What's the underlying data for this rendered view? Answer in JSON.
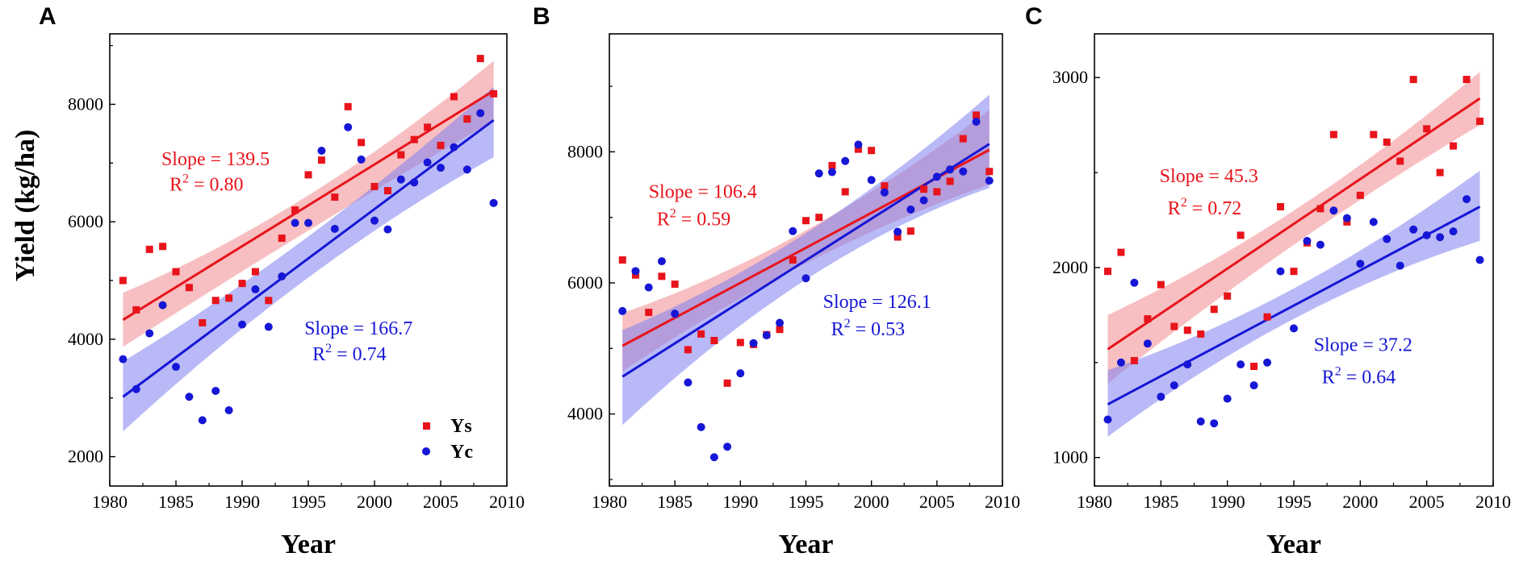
{
  "figure": {
    "ylabel": "Yield (kg/ha)",
    "xlabel": "Year"
  },
  "colors": {
    "ys": "#e8141b",
    "yc": "#1616d6",
    "ys_band": "#f08a8e",
    "yc_band": "#8080f0"
  },
  "legend": {
    "ys_label": "Ys",
    "yc_label": "Yc"
  },
  "chart_data": [
    {
      "panel": "A",
      "type": "scatter",
      "title": "",
      "xlabel": "Year",
      "ylabel": "Yield (kg/ha)",
      "xlim": [
        1980,
        2010
      ],
      "ylim": [
        1500,
        9200
      ],
      "xticks": [
        "1980",
        "1985",
        "1990",
        "1995",
        "2000",
        "2005",
        "2010"
      ],
      "xtick_values": [
        1980,
        1985,
        1990,
        1995,
        2000,
        2005,
        2010
      ],
      "yticks": [
        "2000",
        "4000",
        "6000",
        "8000"
      ],
      "ytick_values": [
        2000,
        4000,
        6000,
        8000
      ],
      "series": [
        {
          "name": "Ys",
          "marker": "square",
          "color": "ys",
          "x": [
            1981,
            1982,
            1983,
            1984,
            1985,
            1986,
            1987,
            1988,
            1989,
            1990,
            1991,
            1992,
            1993,
            1994,
            1995,
            1996,
            1997,
            1998,
            1999,
            2000,
            2001,
            2002,
            2003,
            2004,
            2005,
            2006,
            2007,
            2008,
            2009
          ],
          "y": [
            5000,
            4500,
            5530,
            5580,
            5150,
            4880,
            4280,
            4660,
            4700,
            4950,
            5150,
            4660,
            5720,
            6200,
            6800,
            7050,
            6420,
            7960,
            7350,
            6600,
            6530,
            7140,
            7400,
            7610,
            7300,
            8130,
            7750,
            8780,
            8180
          ],
          "fit": {
            "y_start": 4330,
            "y_end": 8230,
            "slope_label": "Slope = 139.5",
            "r2_label": "R² = 0.80"
          },
          "ci_start": [
            3870,
            4790
          ],
          "ci_mid": [
            5850,
            6450
          ],
          "ci_end": [
            7720,
            8740
          ]
        },
        {
          "name": "Yc",
          "marker": "circle",
          "color": "yc",
          "x": [
            1981,
            1982,
            1983,
            1984,
            1985,
            1986,
            1987,
            1988,
            1989,
            1990,
            1991,
            1992,
            1993,
            1994,
            1995,
            1996,
            1997,
            1998,
            1999,
            2000,
            2001,
            2002,
            2003,
            2004,
            2005,
            2006,
            2007,
            2008,
            2009
          ],
          "y": [
            3660,
            3150,
            4100,
            4580,
            3530,
            3020,
            2620,
            3120,
            2790,
            4250,
            4850,
            4210,
            5070,
            5980,
            5980,
            7210,
            5880,
            7610,
            7060,
            6020,
            5870,
            6720,
            6670,
            7010,
            6920,
            7270,
            6890,
            7850,
            6320
          ],
          "fit": {
            "y_start": 3020,
            "y_end": 7730,
            "slope_label": "Slope = 166.7",
            "r2_label": "R² = 0.74"
          },
          "ci_start": [
            2430,
            3620
          ],
          "ci_mid": [
            5050,
            5750
          ],
          "ci_end": [
            7100,
            8300
          ]
        }
      ],
      "annotations": [
        {
          "series": "Ys",
          "slope": "Slope = 139.5",
          "r2": "R² = 0.80",
          "ax": 1983.9,
          "ay_slope": 6960,
          "ay_r2": 6530
        },
        {
          "series": "Yc",
          "slope": "Slope = 166.7",
          "r2": "R² = 0.74",
          "ax": 1994.7,
          "ay_slope": 4080,
          "ay_r2": 3640
        }
      ],
      "legend": "bottom-right"
    },
    {
      "panel": "B",
      "type": "scatter",
      "title": "",
      "xlabel": "Year",
      "ylabel": "",
      "xlim": [
        1980,
        2010
      ],
      "ylim": [
        2900,
        9800
      ],
      "xticks": [
        "1980",
        "1985",
        "1990",
        "1995",
        "2000",
        "2005",
        "2010"
      ],
      "xtick_values": [
        1980,
        1985,
        1990,
        1995,
        2000,
        2005,
        2010
      ],
      "yticks": [
        "4000",
        "6000",
        "8000"
      ],
      "ytick_values": [
        4000,
        6000,
        8000
      ],
      "series": [
        {
          "name": "Ys",
          "marker": "square",
          "color": "ys",
          "x": [
            1981,
            1982,
            1983,
            1984,
            1985,
            1986,
            1987,
            1988,
            1989,
            1990,
            1991,
            1992,
            1993,
            1994,
            1995,
            1996,
            1997,
            1998,
            1999,
            2000,
            2001,
            2002,
            2003,
            2004,
            2005,
            2006,
            2007,
            2008,
            2009
          ],
          "y": [
            6350,
            6120,
            5550,
            6100,
            5980,
            4980,
            5220,
            5120,
            4470,
            5090,
            5060,
            5210,
            5290,
            6350,
            6950,
            7000,
            7790,
            7390,
            8040,
            8020,
            7480,
            6700,
            6790,
            7430,
            7390,
            7550,
            8200,
            8560,
            7700
          ],
          "fit": {
            "y_start": 5040,
            "y_end": 8030,
            "slope_label": "Slope = 106.4",
            "r2_label": "R² = 0.59"
          },
          "ci_start": [
            4650,
            5540
          ],
          "ci_mid": [
            6300,
            6800
          ],
          "ci_end": [
            7500,
            8640
          ]
        },
        {
          "name": "Yc",
          "marker": "circle",
          "color": "yc",
          "x": [
            1981,
            1982,
            1983,
            1984,
            1985,
            1986,
            1987,
            1988,
            1989,
            1990,
            1991,
            1992,
            1993,
            1994,
            1995,
            1996,
            1997,
            1998,
            1999,
            2000,
            2001,
            2002,
            2003,
            2004,
            2005,
            2006,
            2007,
            2008,
            2009
          ],
          "y": [
            5570,
            6180,
            5930,
            6330,
            5530,
            4480,
            3800,
            3340,
            3500,
            4620,
            5080,
            5200,
            5390,
            6790,
            6070,
            7670,
            7690,
            7860,
            8110,
            7570,
            7380,
            6780,
            7120,
            7260,
            7620,
            7730,
            7700,
            8460,
            7560
          ],
          "fit": {
            "y_start": 4570,
            "y_end": 8120,
            "slope_label": "Slope = 126.1",
            "r2_label": "R² = 0.53"
          },
          "ci_start": [
            3830,
            5280
          ],
          "ci_mid": [
            6050,
            6760
          ],
          "ci_end": [
            7450,
            8870
          ]
        }
      ],
      "annotations": [
        {
          "series": "Ys",
          "slope": "Slope = 106.4",
          "r2": "R² = 0.59",
          "ax": 1983.0,
          "ay_slope": 7300,
          "ay_r2": 6880
        },
        {
          "series": "Yc",
          "slope": "Slope = 126.1",
          "r2": "R² = 0.53",
          "ax": 1996.3,
          "ay_slope": 5620,
          "ay_r2": 5200
        }
      ],
      "legend": "none"
    },
    {
      "panel": "C",
      "type": "scatter",
      "title": "",
      "xlabel": "Year",
      "ylabel": "",
      "xlim": [
        1980,
        2010
      ],
      "ylim": [
        850,
        3230
      ],
      "xticks": [
        "1980",
        "1985",
        "1990",
        "1995",
        "2000",
        "2005",
        "2010"
      ],
      "xtick_values": [
        1980,
        1985,
        1990,
        1995,
        2000,
        2005,
        2010
      ],
      "yticks": [
        "1000",
        "2000",
        "3000"
      ],
      "ytick_values": [
        1000,
        2000,
        3000
      ],
      "series": [
        {
          "name": "Ys",
          "marker": "square",
          "color": "ys",
          "x": [
            1981,
            1982,
            1983,
            1984,
            1985,
            1986,
            1987,
            1988,
            1989,
            1990,
            1991,
            1992,
            1993,
            1994,
            1995,
            1996,
            1997,
            1998,
            1999,
            2000,
            2001,
            2002,
            2003,
            2004,
            2005,
            2006,
            2007,
            2008,
            2009
          ],
          "y": [
            1980,
            2080,
            1510,
            1730,
            1910,
            1690,
            1670,
            1650,
            1780,
            1850,
            2170,
            1480,
            1740,
            2320,
            1980,
            2130,
            2310,
            2700,
            2240,
            2380,
            2700,
            2660,
            2560,
            2990,
            2730,
            2500,
            2640,
            2990,
            2770
          ],
          "fit": {
            "y_start": 1570,
            "y_end": 2890,
            "slope_label": "Slope = 45.3",
            "r2_label": "R² = 0.72"
          },
          "ci_start": [
            1390,
            1750
          ],
          "ci_mid": [
            2120,
            2300
          ],
          "ci_end": [
            2750,
            3030
          ]
        },
        {
          "name": "Yc",
          "marker": "circle",
          "color": "yc",
          "x": [
            1981,
            1982,
            1983,
            1984,
            1985,
            1986,
            1987,
            1988,
            1989,
            1990,
            1991,
            1992,
            1993,
            1994,
            1995,
            1996,
            1997,
            1998,
            1999,
            2000,
            2001,
            2002,
            2003,
            2004,
            2005,
            2006,
            2007,
            2008,
            2009
          ],
          "y": [
            1200,
            1500,
            1920,
            1600,
            1320,
            1380,
            1490,
            1190,
            1180,
            1310,
            1490,
            1380,
            1500,
            1980,
            1680,
            2140,
            2120,
            2300,
            2260,
            2020,
            2240,
            2150,
            2010,
            2200,
            2170,
            2160,
            2190,
            2360,
            2040
          ],
          "fit": {
            "y_start": 1280,
            "y_end": 2320,
            "slope_label": "Slope = 37.2",
            "r2_label": "R² = 0.64"
          },
          "ci_start": [
            1110,
            1460
          ],
          "ci_mid": [
            1730,
            1890
          ],
          "ci_end": [
            2140,
            2510
          ]
        }
      ],
      "annotations": [
        {
          "series": "Ys",
          "slope": "Slope = 45.3",
          "r2": "R² = 0.72",
          "ax": 1984.9,
          "ay_slope": 2450,
          "ay_r2": 2280
        },
        {
          "series": "Yc",
          "slope": "Slope = 37.2",
          "r2": "R² = 0.64",
          "ax": 1996.5,
          "ay_slope": 1560,
          "ay_r2": 1390
        }
      ],
      "legend": "none"
    }
  ]
}
